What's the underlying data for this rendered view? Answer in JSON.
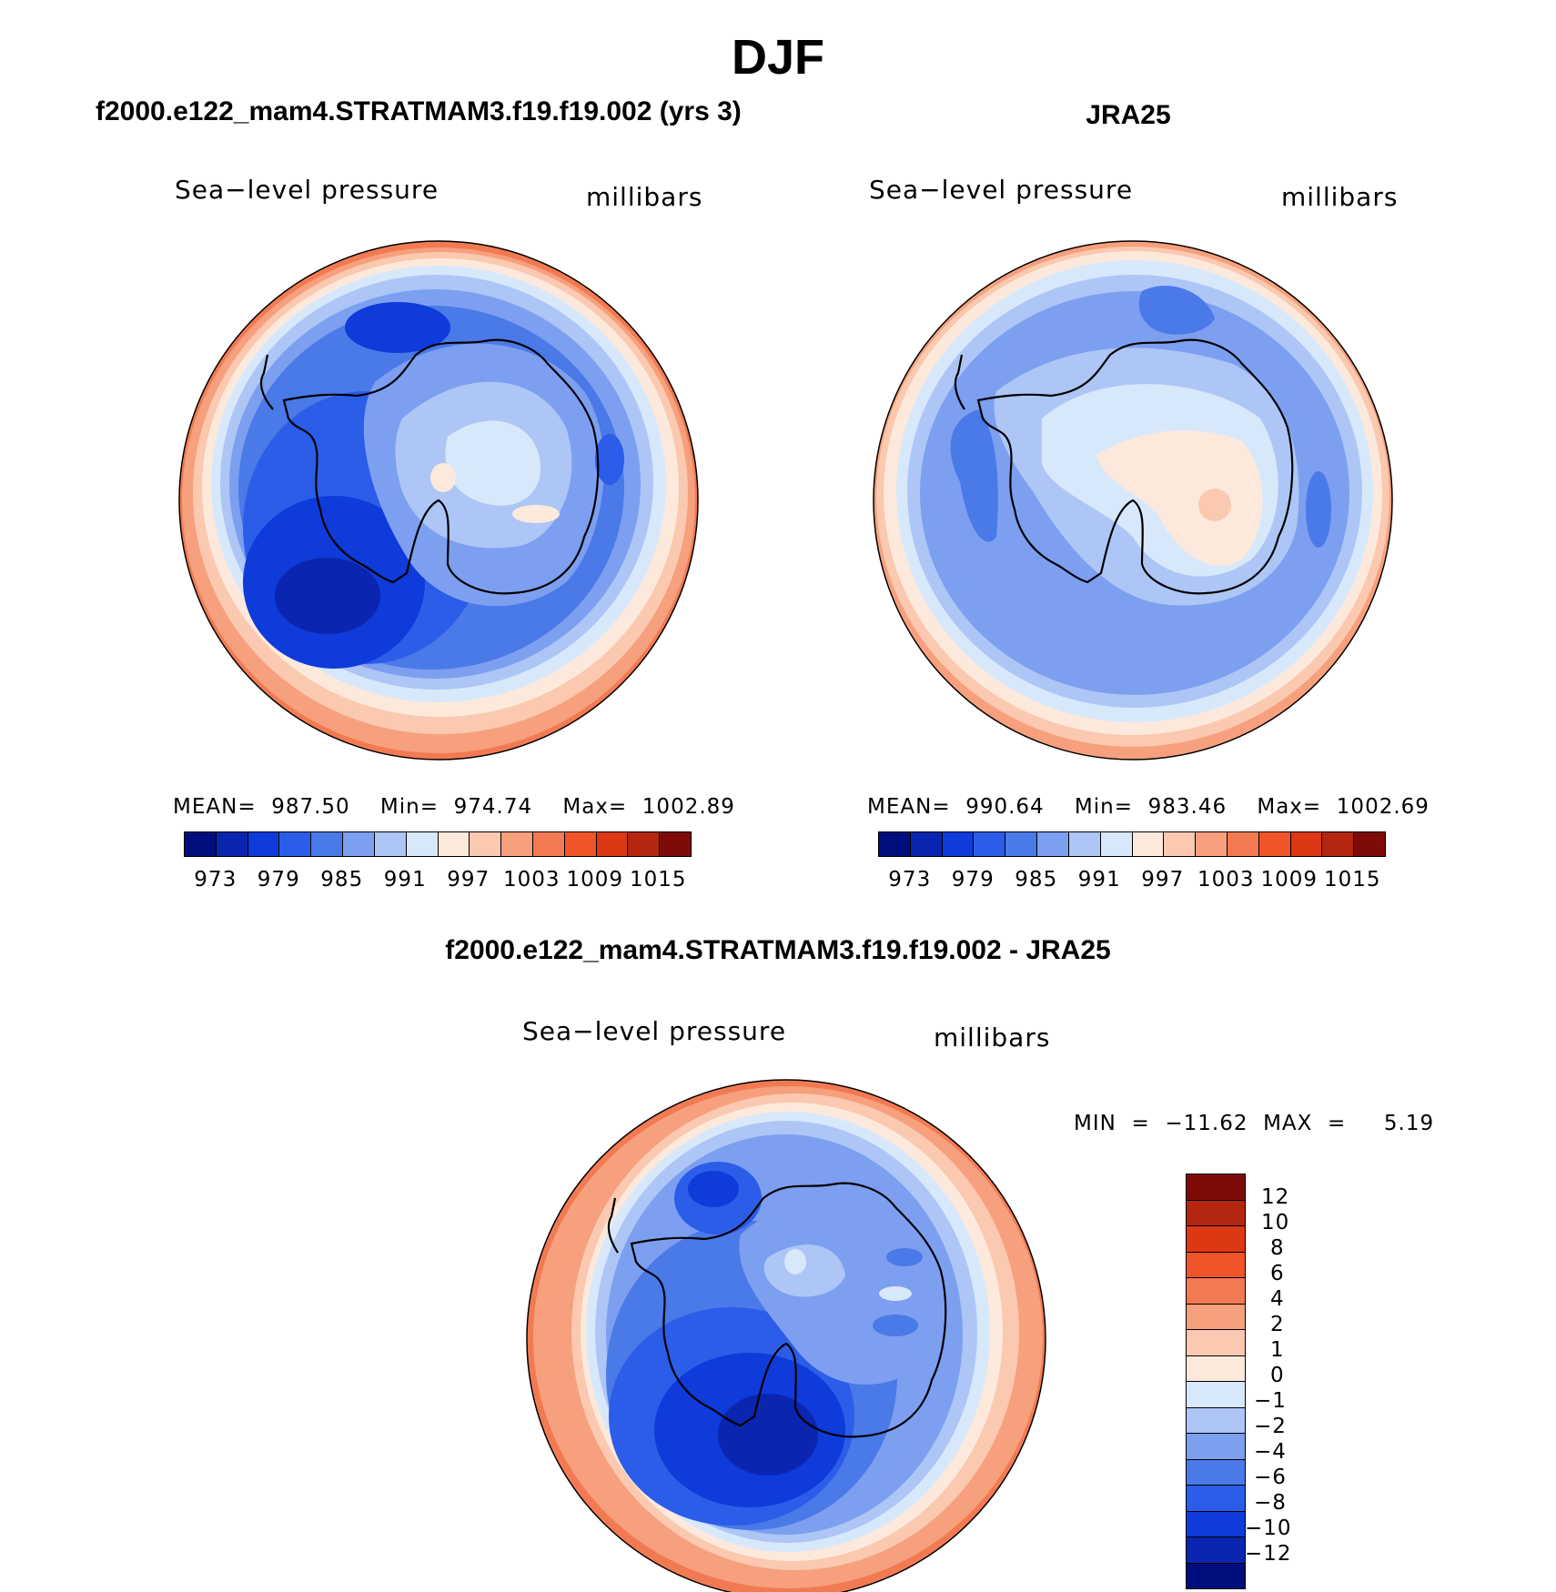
{
  "page_title": "DJF",
  "panels": [
    {
      "title": "f2000.e122_mam4.STRATMAM3.f19.f19.002 (yrs 3)",
      "variable": "Sea−level pressure",
      "units": "millibars",
      "stats": "MEAN=  987.50    Min=  974.74    Max=  1002.89"
    },
    {
      "title": "JRA25",
      "variable": "Sea−level pressure",
      "units": "millibars",
      "stats": "MEAN=  990.64    Min=  983.46    Max=  1002.69"
    },
    {
      "title": "f2000.e122_mam4.STRATMAM3.f19.f19.002 - JRA25",
      "variable": "Sea−level pressure",
      "units": "millibars",
      "stats": "MIN  =  −11.62  MAX  =     5.19"
    }
  ],
  "chart_data": [
    {
      "type": "heatmap",
      "projection": "south-polar stereographic",
      "title": "f2000.e122_mam4.STRATMAM3.f19.f19.002 (yrs 3)",
      "variable": "Sea-level pressure",
      "units": "millibars",
      "mean": 987.5,
      "min": 974.74,
      "max": 1002.89,
      "colorbar_tick_labels": [
        "973",
        "979",
        "985",
        "991",
        "997",
        "1003",
        "1009",
        "1015"
      ],
      "colorbar_levels": [
        973,
        976,
        979,
        982,
        985,
        988,
        991,
        994,
        997,
        1000,
        1003,
        1006,
        1009,
        1012,
        1015
      ]
    },
    {
      "type": "heatmap",
      "projection": "south-polar stereographic",
      "title": "JRA25",
      "variable": "Sea-level pressure",
      "units": "millibars",
      "mean": 990.64,
      "min": 983.46,
      "max": 1002.69,
      "colorbar_tick_labels": [
        "973",
        "979",
        "985",
        "991",
        "997",
        "1003",
        "1009",
        "1015"
      ],
      "colorbar_levels": [
        973,
        976,
        979,
        982,
        985,
        988,
        991,
        994,
        997,
        1000,
        1003,
        1006,
        1009,
        1012,
        1015
      ]
    },
    {
      "type": "heatmap",
      "projection": "south-polar stereographic",
      "title": "f2000.e122_mam4.STRATMAM3.f19.f19.002 - JRA25",
      "variable": "Sea-level pressure",
      "units": "millibars",
      "min": -11.62,
      "max": 5.19,
      "colorbar_tick_labels": [
        "12",
        "10",
        "8",
        "6",
        "4",
        "2",
        "1",
        "0",
        "−1",
        "−2",
        "−4",
        "−6",
        "−8",
        "−10",
        "−12"
      ],
      "colorbar_levels": [
        12,
        10,
        8,
        6,
        4,
        2,
        1,
        0,
        -1,
        -2,
        -4,
        -6,
        -8,
        -10,
        -12
      ]
    }
  ],
  "colors": {
    "scale16": [
      "#000e7d",
      "#0a25b0",
      "#0e3bd9",
      "#2b5de9",
      "#4a79e8",
      "#7d9ff0",
      "#adc6f6",
      "#d8e8fb",
      "#fde9dc",
      "#fbc8b0",
      "#f6a07d",
      "#f27a52",
      "#f0552a",
      "#dc3814",
      "#b42610",
      "#7f0b09"
    ],
    "diff_scale16": [
      "#7f0b09",
      "#b42610",
      "#dc3814",
      "#f0552a",
      "#f27a52",
      "#f6a07d",
      "#fbc8b0",
      "#fde9dc",
      "#d8e8fb",
      "#adc6f6",
      "#7d9ff0",
      "#4a79e8",
      "#2b5de9",
      "#0e3bd9",
      "#0a25b0",
      "#000e7d"
    ]
  }
}
